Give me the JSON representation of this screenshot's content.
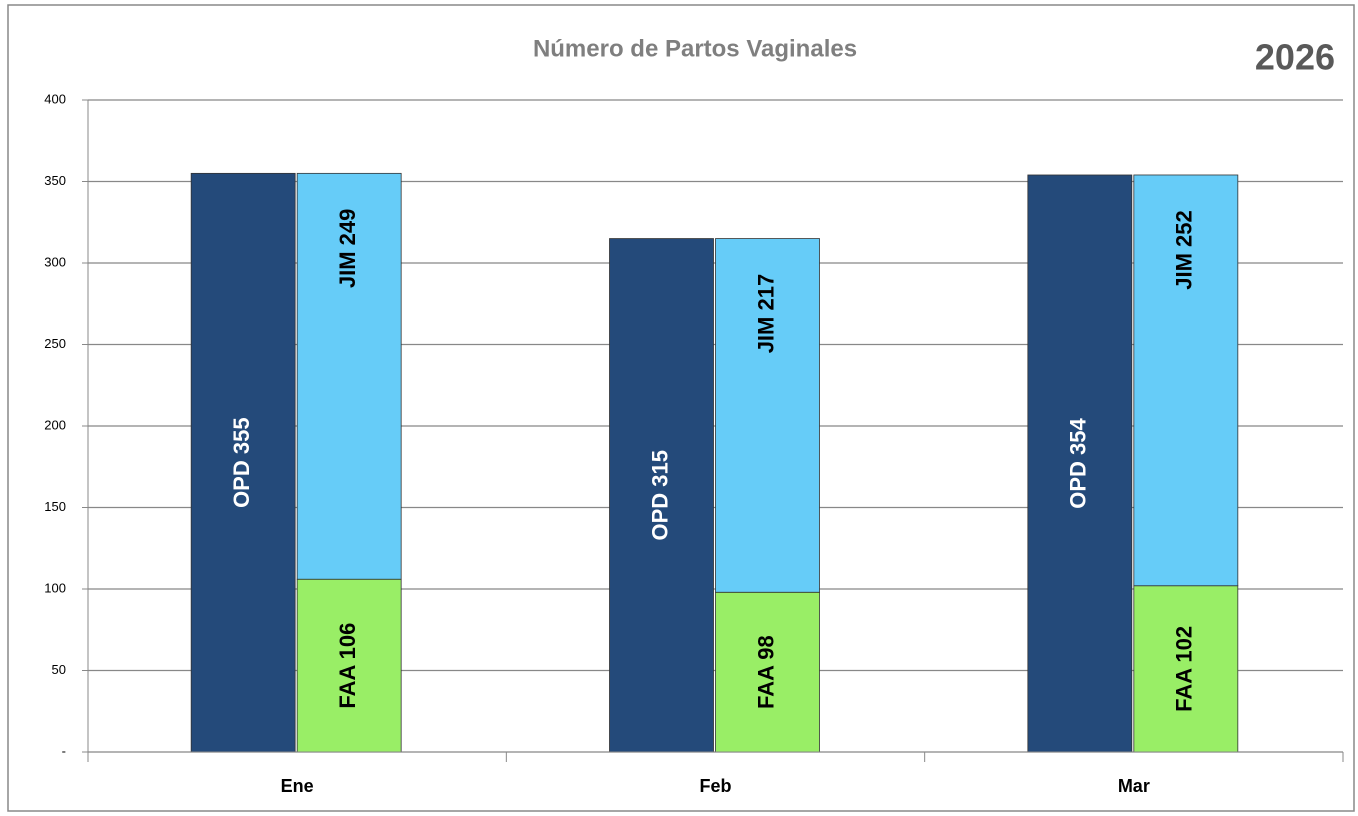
{
  "chart_data": {
    "type": "bar",
    "title": "Número de Partos Vaginales",
    "annotation": "2026",
    "categories": [
      "Ene",
      "Feb",
      "Mar"
    ],
    "series": [
      {
        "name": "OPD",
        "color": "#244a7a",
        "values": [
          355,
          315,
          354
        ],
        "value_labels": [
          "OPD  355",
          "OPD  315",
          "OPD  354"
        ]
      },
      {
        "name": "FAA",
        "color": "#99ee66",
        "values": [
          106,
          98,
          102
        ],
        "value_labels": [
          "FAA  106",
          "FAA  98",
          "FAA  102"
        ]
      },
      {
        "name": "JIM",
        "color": "#66ccf8",
        "values": [
          249,
          217,
          252
        ],
        "value_labels": [
          "JIM  249",
          "JIM  217",
          "JIM  252"
        ]
      }
    ],
    "ylim": [
      0,
      400
    ],
    "yticks": [
      {
        "value": 0,
        "label": "-"
      },
      50,
      100,
      150,
      200,
      250,
      300,
      350,
      400
    ],
    "grid": true
  }
}
